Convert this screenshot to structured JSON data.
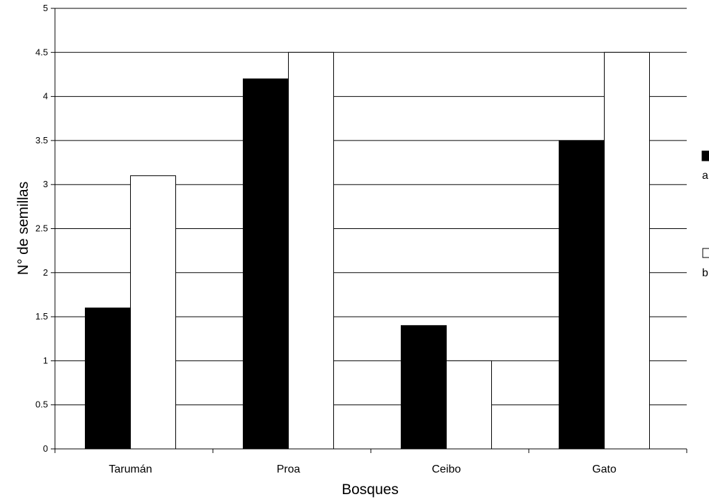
{
  "chart_data": {
    "type": "bar",
    "title": "",
    "xlabel": "Bosques",
    "ylabel": "N° de semillas",
    "categories": [
      "Tarumán",
      "Proa",
      "Ceibo",
      "Gato"
    ],
    "series": [
      {
        "name": "a",
        "color": "#000000",
        "values": [
          1.6,
          4.2,
          1.4,
          3.5
        ]
      },
      {
        "name": "b",
        "color": "#ffffff",
        "values": [
          3.1,
          4.5,
          1.0,
          4.5
        ]
      }
    ],
    "ylim": [
      0,
      5
    ],
    "yticks": [
      "0",
      "0.5",
      "1",
      "1.5",
      "2",
      "2.5",
      "3",
      "3.5",
      "4",
      "4.5",
      "5"
    ],
    "grid": true,
    "legend_position": "right"
  }
}
